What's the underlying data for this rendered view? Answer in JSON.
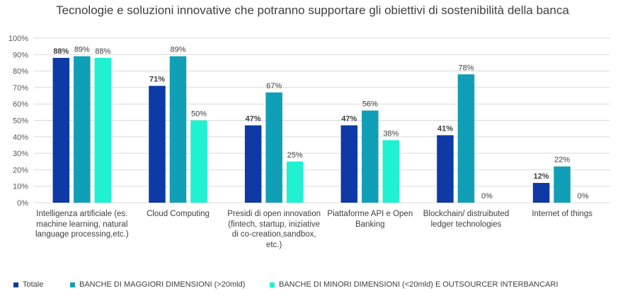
{
  "chart_data": {
    "type": "bar",
    "title": "Tecnologie e soluzioni innovative che potranno supportare gli obiettivi di sostenibilità della banca",
    "categories": [
      [
        "Intelligenza artificiale (es.",
        "machine learning, natural",
        "language processing,etc.)"
      ],
      [
        "Cloud Computing"
      ],
      [
        "Presidi di open innovation",
        "(fintech, startup, iniziative",
        "di co-creation,sandbox,",
        "etc.)"
      ],
      [
        "Piattaforme API e Open",
        "Banking"
      ],
      [
        "Blockchain/ distruibuted",
        "ledger technologies"
      ],
      [
        "Internet of things"
      ]
    ],
    "series": [
      {
        "name": "Totale",
        "color": "#0d3aa4",
        "values": [
          88,
          71,
          47,
          47,
          41,
          12
        ],
        "labels": [
          "88%",
          "71%",
          "47%",
          "47%",
          "41%",
          "12%"
        ],
        "bold": true
      },
      {
        "name": "BANCHE DI MAGGIORI DIMENSIONI (>20mld)",
        "color": "#109fb6",
        "values": [
          89,
          89,
          67,
          56,
          78,
          22
        ],
        "labels": [
          "89%",
          "89%",
          "67%",
          "56%",
          "78%",
          "22%"
        ],
        "bold": false
      },
      {
        "name": "BANCHE DI MINORI DIMENSIONI (<20mld) E OUTSOURCER INTERBANCARI",
        "color": "#1ff1d1",
        "values": [
          88,
          50,
          25,
          38,
          0,
          0
        ],
        "labels": [
          "88%",
          "50%",
          "25%",
          "38%",
          "0%",
          "0%"
        ],
        "bold": false
      }
    ],
    "yticks": [
      "0%",
      "10%",
      "20%",
      "30%",
      "40%",
      "50%",
      "60%",
      "70%",
      "80%",
      "90%",
      "100%"
    ],
    "ylim": [
      0,
      100
    ],
    "xlabel": "",
    "ylabel": "",
    "grid": true,
    "legend": "bottom"
  }
}
